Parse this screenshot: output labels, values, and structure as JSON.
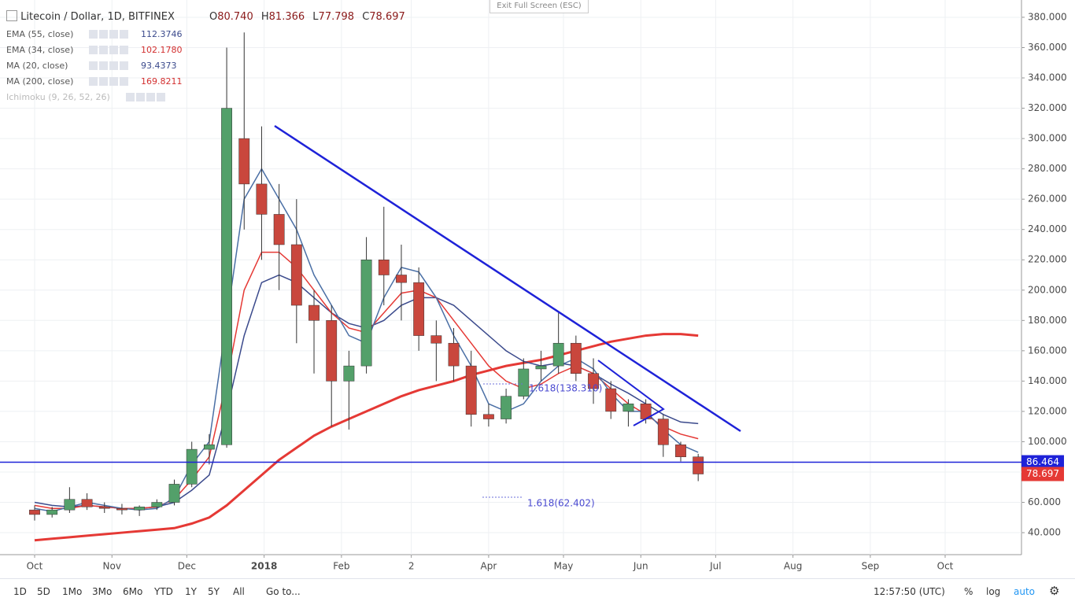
{
  "header": {
    "symbol": "Litecoin / Dollar, 1D, BITFINEX",
    "o_label": "O",
    "open": "80.740",
    "h_label": "H",
    "high": "81.366",
    "l_label": "L",
    "low": "77.798",
    "c_label": "C",
    "close": "78.697",
    "exit": "Exit Full Screen (ESC)"
  },
  "indicators": [
    {
      "name": "EMA (55, close)",
      "value": "112.3746",
      "color": "#3b4a8c"
    },
    {
      "name": "EMA (34, close)",
      "value": "102.1780",
      "color": "#d32f2f"
    },
    {
      "name": "MA (20, close)",
      "value": "93.4373",
      "color": "#3b4a8c"
    },
    {
      "name": "MA (200, close)",
      "value": "169.8211",
      "color": "#d32f2f"
    },
    {
      "name": "Ichimoku (9, 26, 52, 26)"
    }
  ],
  "toolbar": {
    "ranges": [
      "1D",
      "5D",
      "1Mo",
      "3Mo",
      "6Mo",
      "YTD",
      "1Y",
      "5Y",
      "All"
    ],
    "goto": "Go to...",
    "time": "12:57:50 (UTC)",
    "percent": "%",
    "log": "log",
    "auto": "auto"
  },
  "chart_data": {
    "type": "candlestick",
    "x": [
      0,
      7,
      14,
      21,
      28,
      35,
      42,
      49,
      56,
      63,
      70,
      77,
      84,
      91,
      98,
      105,
      112,
      119,
      126,
      133,
      140,
      147,
      154,
      161,
      168,
      175,
      182,
      189,
      196,
      203,
      210,
      217,
      224,
      231,
      238,
      245,
      252,
      259,
      266
    ],
    "open": [
      55,
      52,
      55,
      62,
      57,
      56,
      55,
      57,
      60,
      72,
      95,
      98,
      300,
      270,
      250,
      230,
      190,
      180,
      140,
      150,
      220,
      210,
      205,
      170,
      165,
      150,
      118,
      115,
      130,
      148,
      150,
      165,
      145,
      135,
      120,
      125,
      115,
      98,
      90
    ],
    "high": [
      58,
      57,
      70,
      66,
      60,
      59,
      58,
      62,
      75,
      100,
      105,
      360,
      370,
      308,
      270,
      260,
      200,
      190,
      160,
      235,
      255,
      230,
      215,
      180,
      175,
      160,
      125,
      135,
      155,
      160,
      185,
      170,
      155,
      140,
      128,
      128,
      118,
      100,
      92
    ],
    "low": [
      48,
      50,
      53,
      55,
      53,
      52,
      51,
      55,
      58,
      70,
      85,
      96,
      240,
      220,
      200,
      165,
      145,
      110,
      108,
      145,
      190,
      180,
      160,
      140,
      140,
      110,
      110,
      112,
      128,
      140,
      145,
      140,
      125,
      115,
      110,
      112,
      90,
      87,
      74
    ],
    "close": [
      52,
      55,
      62,
      57,
      56,
      55,
      57,
      60,
      72,
      95,
      98,
      320,
      270,
      250,
      230,
      190,
      180,
      140,
      150,
      220,
      210,
      205,
      170,
      165,
      150,
      118,
      115,
      130,
      148,
      150,
      165,
      145,
      135,
      120,
      125,
      115,
      98,
      90,
      78.697
    ],
    "up_color": "#53a06a",
    "down_color": "#c9473d",
    "series": [
      {
        "name": "MA (200, close)",
        "color": "#e53935",
        "width": 3,
        "values": [
          35,
          36,
          37,
          38,
          39,
          40,
          41,
          42,
          43,
          46,
          50,
          58,
          68,
          78,
          88,
          96,
          104,
          110,
          115,
          120,
          125,
          130,
          134,
          137,
          140,
          144,
          147,
          150,
          152,
          154,
          157,
          160,
          163,
          166,
          168,
          170,
          171,
          171,
          170
        ]
      },
      {
        "name": "EMA (55, close)",
        "color": "#3b4a8c",
        "width": 1.5,
        "values": [
          60,
          58,
          57,
          58,
          57,
          56,
          56,
          57,
          60,
          68,
          78,
          120,
          170,
          205,
          210,
          205,
          195,
          185,
          178,
          175,
          180,
          190,
          195,
          195,
          190,
          180,
          170,
          160,
          153,
          150,
          152,
          150,
          145,
          138,
          132,
          125,
          118,
          113,
          112
        ]
      },
      {
        "name": "EMA (34, close)",
        "color": "#e53935",
        "width": 1.5,
        "values": [
          58,
          56,
          56,
          58,
          57,
          56,
          56,
          57,
          62,
          75,
          90,
          140,
          200,
          225,
          225,
          215,
          200,
          185,
          175,
          172,
          185,
          198,
          200,
          195,
          180,
          165,
          150,
          140,
          135,
          138,
          145,
          150,
          145,
          135,
          125,
          118,
          110,
          105,
          102
        ]
      },
      {
        "name": "MA (20, close)",
        "color": "#4a6fa5",
        "width": 1.5,
        "values": [
          56,
          54,
          57,
          60,
          58,
          56,
          55,
          56,
          63,
          85,
          100,
          180,
          260,
          280,
          260,
          240,
          210,
          190,
          170,
          165,
          195,
          215,
          212,
          195,
          170,
          150,
          125,
          120,
          125,
          140,
          150,
          155,
          148,
          132,
          120,
          120,
          108,
          98,
          93
        ]
      }
    ],
    "xlim": [
      -12.3,
      395.6
    ],
    "xticks": [
      {
        "value": 0,
        "label": "Oct"
      },
      {
        "value": 31,
        "label": "Nov"
      },
      {
        "value": 61,
        "label": "Dec"
      },
      {
        "value": 92,
        "label": "2018"
      },
      {
        "value": 123,
        "label": "Feb"
      },
      {
        "value": 151,
        "label": "2"
      },
      {
        "value": 182,
        "label": "Apr"
      },
      {
        "value": 212,
        "label": "May"
      },
      {
        "value": 243,
        "label": "Jun"
      },
      {
        "value": 273,
        "label": "Jul"
      },
      {
        "value": 304,
        "label": "Aug"
      },
      {
        "value": 335,
        "label": "Sep"
      },
      {
        "value": 365,
        "label": "Oct"
      }
    ],
    "ylim": [
      25.5,
      388.8
    ],
    "yticks": [
      {
        "value": 40,
        "label": "40.000"
      },
      {
        "value": 60,
        "label": "60.000"
      },
      {
        "value": 80,
        "label": "80.000"
      },
      {
        "value": 100,
        "label": "100.000"
      },
      {
        "value": 120,
        "label": "120.000"
      },
      {
        "value": 140,
        "label": "140.000"
      },
      {
        "value": 160,
        "label": "160.000"
      },
      {
        "value": 180,
        "label": "180.000"
      },
      {
        "value": 200,
        "label": "200.000"
      },
      {
        "value": 220,
        "label": "220.000"
      },
      {
        "value": 240,
        "label": "240.000"
      },
      {
        "value": 260,
        "label": "260.000"
      },
      {
        "value": 280,
        "label": "280.000"
      },
      {
        "value": 300,
        "label": "300.000"
      },
      {
        "value": 320,
        "label": "320.000"
      },
      {
        "value": 340,
        "label": "340.000"
      },
      {
        "value": 360,
        "label": "360.000"
      },
      {
        "value": 380,
        "label": "380.000"
      }
    ],
    "grid": true,
    "hline": 86.464,
    "hline_color": "#1e22d8",
    "last_price": 78.697,
    "last_color": "#e53935",
    "annotations": [
      "1.618(138.310)",
      "1.618(62.402)"
    ]
  }
}
